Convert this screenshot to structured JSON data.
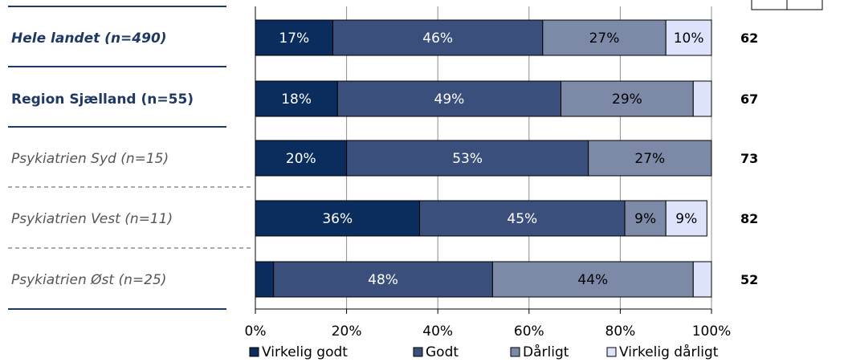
{
  "chart_data": {
    "type": "bar",
    "orientation": "horizontal",
    "stacked": true,
    "percent_axis": true,
    "xlim": [
      0,
      100
    ],
    "x_ticks": [
      "0%",
      "20%",
      "40%",
      "60%",
      "80%",
      "100%"
    ],
    "categories": [
      "Hele landet (n=490)",
      "Region Sjælland (n=55)",
      "Psykiatrien Syd (n=15)",
      "Psykiatrien Vest (n=11)",
      "Psykiatrien Øst (n=25)"
    ],
    "category_styles": [
      "bold-italic-blue",
      "bold-blue",
      "italic-gray",
      "italic-gray",
      "italic-gray"
    ],
    "series": [
      {
        "name": "Virkelig godt",
        "color": "#0b2d5e",
        "values": [
          17,
          18,
          20,
          36,
          4
        ],
        "labels": [
          "17%",
          "18%",
          "20%",
          "36%",
          ""
        ]
      },
      {
        "name": "Godt",
        "color": "#3a4f7c",
        "values": [
          46,
          49,
          53,
          45,
          48
        ],
        "labels": [
          "46%",
          "49%",
          "53%",
          "45%",
          "48%"
        ]
      },
      {
        "name": "Dårligt",
        "color": "#7c8aa7",
        "values": [
          27,
          29,
          27,
          9,
          44
        ],
        "labels": [
          "27%",
          "29%",
          "27%",
          "9%",
          "44%"
        ]
      },
      {
        "name": "Virkelig dårligt",
        "color": "#dde3fb",
        "values": [
          10,
          4,
          0,
          9,
          4
        ],
        "labels": [
          "10%",
          "",
          "",
          "9%",
          ""
        ]
      }
    ],
    "scores": [
      "62",
      "67",
      "73",
      "82",
      "52"
    ],
    "grid": true,
    "legend": "bottom"
  }
}
